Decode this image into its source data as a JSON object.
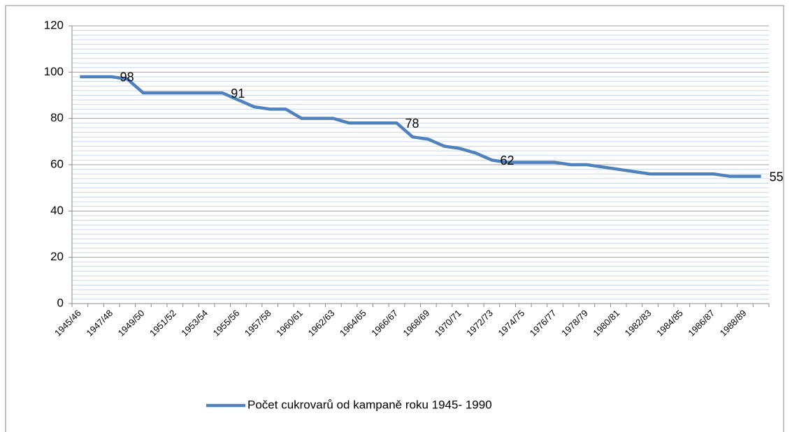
{
  "chart_data": {
    "type": "line",
    "categories": [
      "1945/46",
      null,
      "1947/48",
      null,
      "1949/50",
      null,
      "1951/52",
      null,
      "1953/54",
      null,
      "1955/56",
      null,
      "1957/58",
      null,
      "1960/61",
      null,
      "1962/63",
      null,
      "1964/65",
      null,
      "1966/67",
      null,
      "1968/69",
      null,
      "1970/71",
      null,
      "1972/73",
      null,
      "1974/75",
      null,
      "1976/77",
      null,
      "1978/79",
      null,
      "1980/81",
      null,
      "1982/83",
      null,
      "1984/85",
      null,
      "1986/87",
      null,
      "1988/89",
      null
    ],
    "series": [
      {
        "name": "Počet cukrovarů od kampaně roku 1945- 1990",
        "color": "#4f81bd",
        "values": [
          98,
          98,
          98,
          97,
          91,
          91,
          91,
          91,
          91,
          91,
          88,
          85,
          84,
          84,
          80,
          80,
          80,
          78,
          78,
          78,
          78,
          72,
          71,
          68,
          67,
          65,
          62,
          61,
          61,
          61,
          61,
          60,
          60,
          59,
          58,
          57,
          56,
          56,
          56,
          56,
          56,
          55,
          55,
          55
        ],
        "value_labels": [
          null,
          null,
          "98",
          null,
          null,
          null,
          null,
          null,
          null,
          "91",
          null,
          null,
          null,
          null,
          null,
          null,
          null,
          null,
          null,
          null,
          "78",
          null,
          null,
          null,
          null,
          null,
          "62",
          null,
          null,
          null,
          null,
          null,
          null,
          null,
          null,
          null,
          null,
          null,
          null,
          null,
          null,
          null,
          null,
          "55"
        ]
      }
    ],
    "ylim": [
      0,
      120
    ],
    "yticks": [
      0,
      20,
      40,
      60,
      80,
      100,
      120
    ],
    "grid": true,
    "legend": "bottom"
  }
}
